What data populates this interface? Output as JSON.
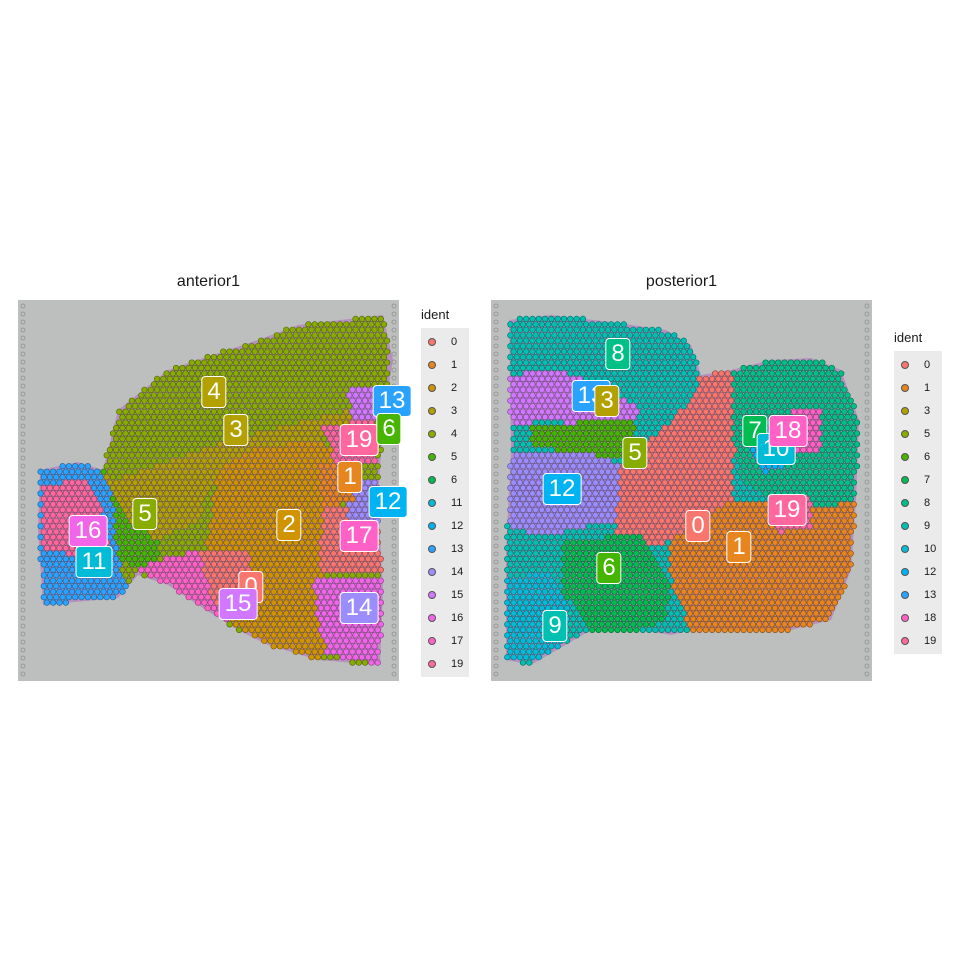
{
  "palette": {
    "0": "#F8766D",
    "1": "#E7851E",
    "2": "#D09400",
    "3": "#B2A100",
    "4": "#89AC00",
    "5": "#45B500",
    "6": "#00BC51",
    "7": "#00C087",
    "8": "#00C0B2",
    "9": "#00BCD6",
    "10": "#00B3F2",
    "11": "#29A3FF",
    "12": "#9C8DFF",
    "13": "#D277FF",
    "14": "#F166E8",
    "15": "#FF61C7",
    "16": "#FF689E",
    "17": "#F8766D",
    "18": "#FF61C7",
    "19": "#FF689E"
  },
  "chart_data": [
    {
      "type": "scatter",
      "title": "anterior1",
      "legend_title": "ident",
      "legend_position": "right",
      "grid": false,
      "legend": [
        {
          "label": "0",
          "color": "#F8766D"
        },
        {
          "label": "1",
          "color": "#E7851E"
        },
        {
          "label": "2",
          "color": "#D09400"
        },
        {
          "label": "3",
          "color": "#B2A100"
        },
        {
          "label": "4",
          "color": "#89AC00"
        },
        {
          "label": "5",
          "color": "#45B500"
        },
        {
          "label": "6",
          "color": "#00BC51"
        },
        {
          "label": "11",
          "color": "#00BCD6"
        },
        {
          "label": "12",
          "color": "#00B3F2"
        },
        {
          "label": "13",
          "color": "#29A3FF"
        },
        {
          "label": "14",
          "color": "#9C8DFF"
        },
        {
          "label": "15",
          "color": "#D277FF"
        },
        {
          "label": "16",
          "color": "#F166E8"
        },
        {
          "label": "17",
          "color": "#FF61C7"
        },
        {
          "label": "19",
          "color": "#FF689E"
        }
      ],
      "cluster_labels": [
        {
          "label": "4",
          "color": "#B2A100"
        },
        {
          "label": "3",
          "color": "#B2A100"
        },
        {
          "label": "13",
          "color": "#29A3FF"
        },
        {
          "label": "19",
          "color": "#FF689E"
        },
        {
          "label": "6",
          "color": "#45B500"
        },
        {
          "label": "1",
          "color": "#E7851E"
        },
        {
          "label": "12",
          "color": "#00B3F2"
        },
        {
          "label": "2",
          "color": "#D09400"
        },
        {
          "label": "17",
          "color": "#FF61C7"
        },
        {
          "label": "5",
          "color": "#89AC00"
        },
        {
          "label": "16",
          "color": "#F166E8"
        },
        {
          "label": "11",
          "color": "#00BCD6"
        },
        {
          "label": "0",
          "color": "#F8766D"
        },
        {
          "label": "15",
          "color": "#D277FF"
        },
        {
          "label": "14",
          "color": "#9C8DFF"
        }
      ]
    },
    {
      "type": "scatter",
      "title": "posterior1",
      "legend_title": "ident",
      "legend_position": "right",
      "grid": false,
      "legend": [
        {
          "label": "0",
          "color": "#F8766D"
        },
        {
          "label": "1",
          "color": "#E7851E"
        },
        {
          "label": "3",
          "color": "#B2A100"
        },
        {
          "label": "5",
          "color": "#89AC00"
        },
        {
          "label": "6",
          "color": "#45B500"
        },
        {
          "label": "7",
          "color": "#00BC51"
        },
        {
          "label": "8",
          "color": "#00C087"
        },
        {
          "label": "9",
          "color": "#00C0B2"
        },
        {
          "label": "10",
          "color": "#00BCD6"
        },
        {
          "label": "12",
          "color": "#00B3F2"
        },
        {
          "label": "13",
          "color": "#29A3FF"
        },
        {
          "label": "18",
          "color": "#FF61C7"
        },
        {
          "label": "19",
          "color": "#FF689E"
        }
      ],
      "cluster_labels": [
        {
          "label": "8",
          "color": "#00C087"
        },
        {
          "label": "13",
          "color": "#29A3FF"
        },
        {
          "label": "3",
          "color": "#B2A100"
        },
        {
          "label": "5",
          "color": "#89AC00"
        },
        {
          "label": "12",
          "color": "#00B3F2"
        },
        {
          "label": "7",
          "color": "#00BC51"
        },
        {
          "label": "10",
          "color": "#00BCD6"
        },
        {
          "label": "18",
          "color": "#FF61C7"
        },
        {
          "label": "19",
          "color": "#FF689E"
        },
        {
          "label": "0",
          "color": "#F8766D"
        },
        {
          "label": "1",
          "color": "#E7851E"
        },
        {
          "label": "6",
          "color": "#45B500"
        },
        {
          "label": "9",
          "color": "#00C0B2"
        }
      ]
    }
  ]
}
